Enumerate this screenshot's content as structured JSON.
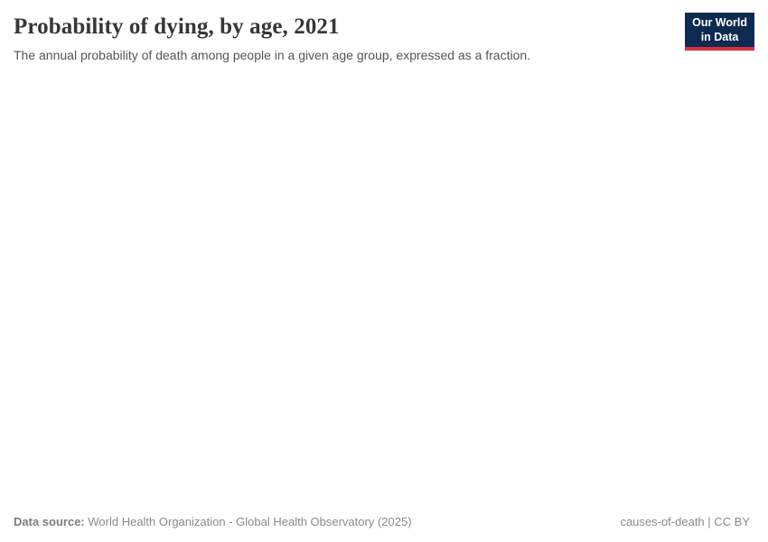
{
  "header": {
    "title": "Probability of dying, by age, 2021",
    "subtitle": "The annual probability of death among people in a given age group, expressed as a fraction.",
    "logo": {
      "line1": "Our World",
      "line2": "in Data"
    }
  },
  "chart_data": {
    "type": "line",
    "title": "Probability of dying, by age, 2021",
    "subtitle": "The annual probability of death among people in a given age group, expressed as a fraction.",
    "series": [],
    "note_visible_state": "plot area is blank / not rendered in the screenshot"
  },
  "footer": {
    "data_source_label": "Data source:",
    "data_source_value": "World Health Organization - Global Health Observatory (2025)",
    "license_text": "causes-of-death | CC BY"
  },
  "colors": {
    "logo_background": "#0d2a50",
    "logo_accent_red": "#d8313f",
    "title_text": "#383636",
    "subtitle_text": "#555555",
    "footer_text": "#858585",
    "page_background": "#ffffff"
  }
}
